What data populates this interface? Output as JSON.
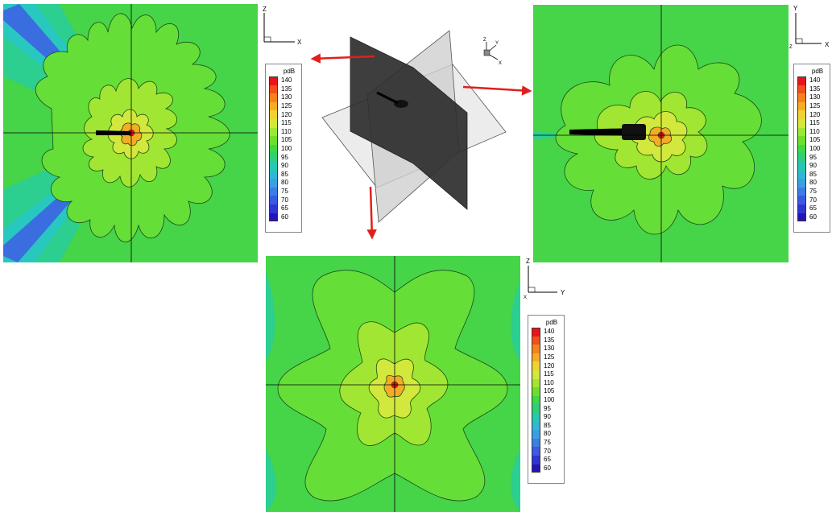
{
  "legend": {
    "title": "pdB",
    "levels": [
      "140",
      "135",
      "130",
      "125",
      "120",
      "115",
      "110",
      "105",
      "100",
      "95",
      "90",
      "85",
      "80",
      "75",
      "70",
      "65",
      "60"
    ],
    "colors": [
      "#e8141c",
      "#f0501a",
      "#f5821c",
      "#f5ac25",
      "#f0d232",
      "#d2e83c",
      "#a0e632",
      "#6ede2d",
      "#3ed846",
      "#2ece7a",
      "#28c8b0",
      "#2eb8d4",
      "#3aa0e6",
      "#3c7ee6",
      "#3a5ae0",
      "#3034d2",
      "#2414b4"
    ]
  },
  "axes_top_left": {
    "vertical": "Z",
    "horizontal": "X"
  },
  "axes_top_right": {
    "vertical": "Y",
    "horizontal": "X",
    "origin": "Z"
  },
  "axes_bottom": {
    "vertical": "Z",
    "horizontal": "Y",
    "origin": "X"
  },
  "axes_iso": {
    "z": "Z",
    "y": "Y",
    "x": "X"
  },
  "colors": {
    "arrow": "#e0201c",
    "field": "#55dc50",
    "contour": "#1a4a1a"
  }
}
